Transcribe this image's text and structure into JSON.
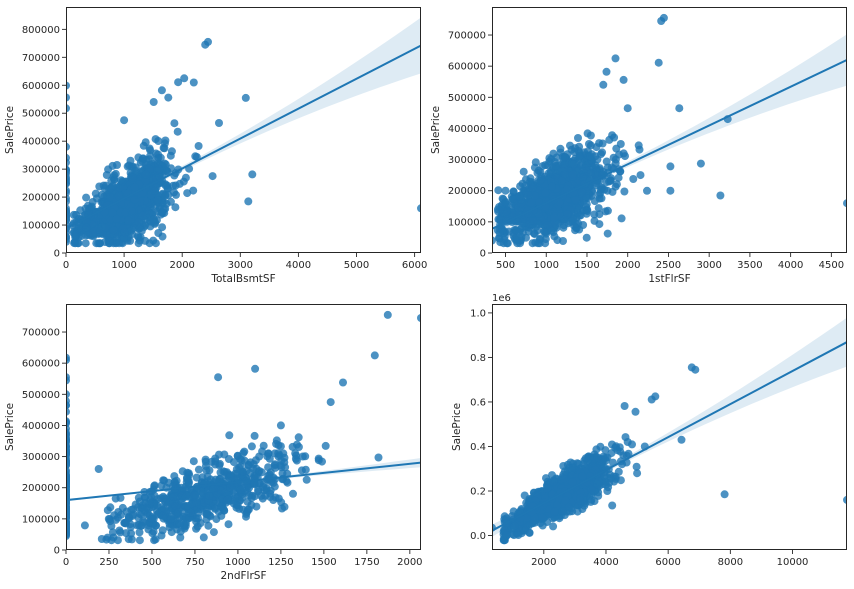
{
  "figure": {
    "point_color": "#1f77b4",
    "ci_color": "#c6dbef"
  },
  "chart_data": [
    {
      "type": "scatter",
      "title": "",
      "xlabel": "TotalBsmtSF",
      "ylabel": "SalePrice",
      "xlim": [
        0,
        6110
      ],
      "ylim": [
        0,
        880000
      ],
      "xticks": [
        0,
        1000,
        2000,
        3000,
        4000,
        5000,
        6000
      ],
      "yticks": [
        0,
        100000,
        200000,
        300000,
        400000,
        500000,
        600000,
        700000,
        800000
      ],
      "xtick_labels": [
        "0",
        "1000",
        "2000",
        "3000",
        "4000",
        "5000",
        "6000"
      ],
      "ytick_labels": [
        "0",
        "100000",
        "200000",
        "300000",
        "400000",
        "500000",
        "600000",
        "700000",
        "800000"
      ],
      "offset_label": "",
      "cluster": {
        "x_mean": 1050,
        "x_sd": 380,
        "slope": 105,
        "intercept": 63000,
        "noise_sd": 52000,
        "n": 1150,
        "x_min": 100,
        "x_max": 2300,
        "zero_x_count": 37,
        "seed": 11
      },
      "outliers": [
        [
          2444,
          755000
        ],
        [
          2396,
          745000
        ],
        [
          2035,
          625000
        ],
        [
          1930,
          611000
        ],
        [
          1650,
          582000
        ],
        [
          1510,
          540000
        ],
        [
          1760,
          556000
        ],
        [
          2200,
          610000
        ],
        [
          2633,
          465000
        ],
        [
          3138,
          184750
        ],
        [
          3206,
          281000
        ],
        [
          3094,
          555000
        ],
        [
          2524,
          275000
        ],
        [
          6110,
          160000
        ],
        [
          0,
          40000
        ],
        [
          0,
          195000
        ],
        [
          1000,
          475000
        ]
      ],
      "regression": {
        "slope": 107.1,
        "intercept": 88000,
        "ci_at_xmax": [
          640000,
          840000
        ]
      },
      "grid": false
    },
    {
      "type": "scatter",
      "title": "",
      "xlabel": "1stFlrSF",
      "ylabel": "SalePrice",
      "xlim": [
        334,
        4692
      ],
      "ylim": [
        0,
        790000
      ],
      "xticks": [
        500,
        1000,
        1500,
        2000,
        2500,
        3000,
        3500,
        4000,
        4500
      ],
      "yticks": [
        0,
        100000,
        200000,
        300000,
        400000,
        500000,
        600000,
        700000
      ],
      "xtick_labels": [
        "500",
        "1000",
        "1500",
        "2000",
        "2500",
        "3000",
        "3500",
        "4000",
        "4500"
      ],
      "ytick_labels": [
        "0",
        "100000",
        "200000",
        "300000",
        "400000",
        "500000",
        "600000",
        "700000"
      ],
      "offset_label": "",
      "cluster": {
        "x_mean": 1110,
        "x_sd": 330,
        "slope": 120,
        "intercept": 45000,
        "noise_sd": 50000,
        "n": 1200,
        "x_min": 400,
        "x_max": 2300,
        "zero_x_count": 0,
        "seed": 23
      },
      "outliers": [
        [
          2411,
          745000
        ],
        [
          2444,
          755000
        ],
        [
          1850,
          625000
        ],
        [
          1740,
          582000
        ],
        [
          1700,
          540000
        ],
        [
          1950,
          556000
        ],
        [
          2380,
          611000
        ],
        [
          2633,
          465000
        ],
        [
          2000,
          465000
        ],
        [
          3138,
          184750
        ],
        [
          2898,
          287000
        ],
        [
          2524,
          278000
        ],
        [
          2524,
          200000
        ],
        [
          3228,
          430000
        ],
        [
          4692,
          160000
        ],
        [
          334,
          40000
        ],
        [
          500,
          200000
        ]
      ],
      "regression": {
        "slope": 124.5,
        "intercept": 36000,
        "ci_at_xmax": [
          535000,
          700000
        ]
      },
      "grid": false
    },
    {
      "type": "scatter",
      "title": "",
      "xlabel": "2ndFlrSF",
      "ylabel": "SalePrice",
      "xlim": [
        0,
        2065
      ],
      "ylim": [
        0,
        790000
      ],
      "xticks": [
        0,
        250,
        500,
        750,
        1000,
        1250,
        1500,
        1750,
        2000
      ],
      "yticks": [
        0,
        100000,
        200000,
        300000,
        400000,
        500000,
        600000,
        700000
      ],
      "xtick_labels": [
        "0",
        "250",
        "500",
        "750",
        "1000",
        "1250",
        "1500",
        "1750",
        "2000"
      ],
      "ytick_labels": [
        "0",
        "100000",
        "200000",
        "300000",
        "400000",
        "500000",
        "600000",
        "700000"
      ],
      "offset_label": "",
      "cluster": {
        "x_mean": 800,
        "x_sd": 260,
        "slope": 180,
        "intercept": 35000,
        "noise_sd": 45000,
        "n": 620,
        "x_min": 200,
        "x_max": 1600,
        "zero_x_count": 140,
        "seed": 37
      },
      "outliers": [
        [
          1872,
          755000
        ],
        [
          2065,
          745000
        ],
        [
          1796,
          625000
        ],
        [
          1611,
          538000
        ],
        [
          885,
          555000
        ],
        [
          1100,
          582000
        ],
        [
          1818,
          297000
        ],
        [
          1540,
          475000
        ],
        [
          1250,
          400000
        ],
        [
          1150,
          335000
        ],
        [
          110,
          79000
        ],
        [
          365,
          35000
        ],
        [
          665,
          40000
        ],
        [
          190,
          260000
        ],
        [
          0,
          610000
        ],
        [
          0,
          555000
        ],
        [
          0,
          500000
        ],
        [
          0,
          465000
        ]
      ],
      "regression": {
        "slope": 58.4,
        "intercept": 160000,
        "ci_at_xmax": [
          265000,
          295000
        ]
      },
      "grid": false
    },
    {
      "type": "scatter",
      "title": "",
      "xlabel": "",
      "ylabel": "SalePrice",
      "xlim": [
        334,
        11752
      ],
      "ylim": [
        -0.065,
        1.04
      ],
      "xticks": [
        2000,
        4000,
        6000,
        8000,
        10000
      ],
      "yticks": [
        0.0,
        0.2,
        0.4,
        0.6,
        0.8,
        1.0
      ],
      "xtick_labels": [
        "2000",
        "4000",
        "6000",
        "8000",
        "10000"
      ],
      "ytick_labels": [
        "0.0",
        "0.2",
        "0.4",
        "0.6",
        "0.8",
        "1.0"
      ],
      "offset_label": "1e6",
      "cluster": {
        "x_mean": 2550,
        "x_sd": 780,
        "slope": 8.45e-05,
        "intercept": -0.035,
        "noise_sd": 0.038,
        "n": 1250,
        "x_min": 700,
        "x_max": 5200,
        "zero_x_count": 0,
        "seed": 53
      },
      "outliers": [
        [
          6760,
          0.755
        ],
        [
          6872,
          0.745
        ],
        [
          5585,
          0.625
        ],
        [
          5470,
          0.611
        ],
        [
          4600,
          0.582
        ],
        [
          4950,
          0.556
        ],
        [
          6428,
          0.43
        ],
        [
          7814,
          0.185
        ],
        [
          11752,
          0.16
        ],
        [
          5250,
          0.4
        ],
        [
          4200,
          0.135
        ],
        [
          334,
          0.035
        ],
        [
          4700,
          0.42
        ],
        [
          5000,
          0.28
        ]
      ],
      "regression": {
        "slope": 7.42e-05,
        "intercept": -0.003,
        "ci_at_xmax": [
          0.76,
          0.98
        ]
      },
      "grid": false
    }
  ]
}
